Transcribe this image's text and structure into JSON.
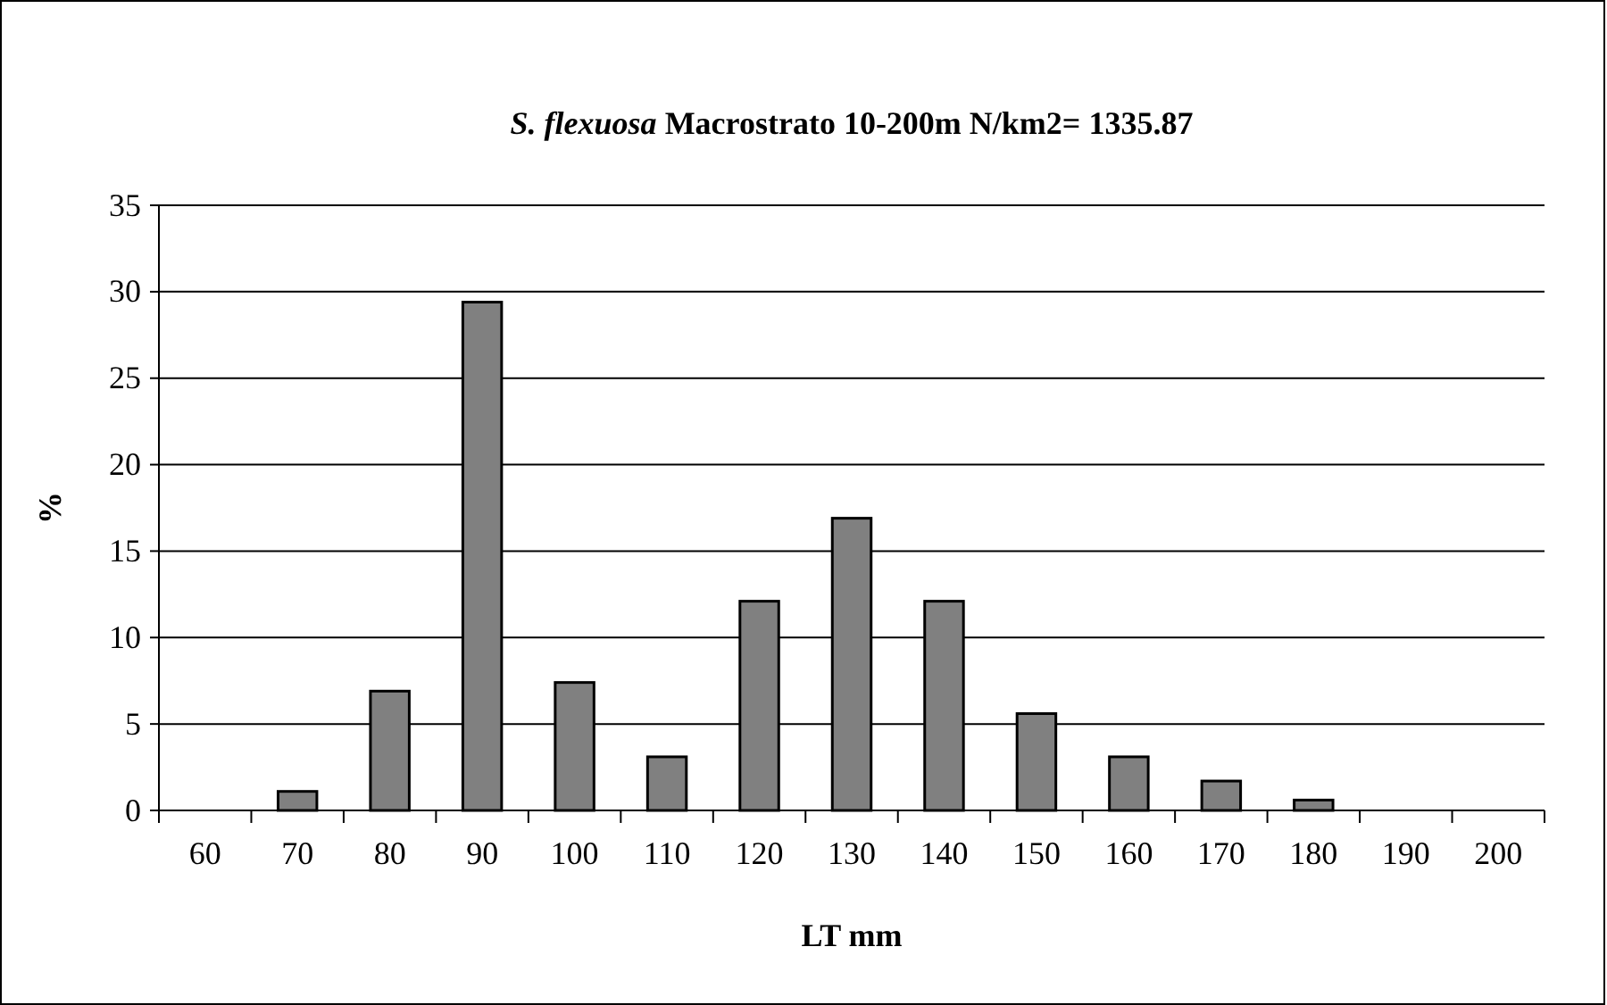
{
  "chart_data": {
    "type": "bar",
    "title": "S. flexuosa  Macrostrato 10-200m N/km2= 1335.87",
    "xlabel": "LT mm",
    "ylabel": "%",
    "categories": [
      "60",
      "70",
      "80",
      "90",
      "100",
      "110",
      "120",
      "130",
      "140",
      "150",
      "160",
      "170",
      "180",
      "190",
      "200"
    ],
    "values": [
      0,
      1.1,
      6.9,
      29.4,
      7.4,
      3.1,
      12.1,
      16.9,
      12.1,
      5.6,
      3.1,
      1.7,
      0.6,
      0,
      0
    ],
    "color": "#808080",
    "ylim": [
      0,
      35
    ],
    "yticks": [
      0,
      5,
      10,
      15,
      20,
      25,
      30,
      35
    ],
    "grid": "y"
  }
}
